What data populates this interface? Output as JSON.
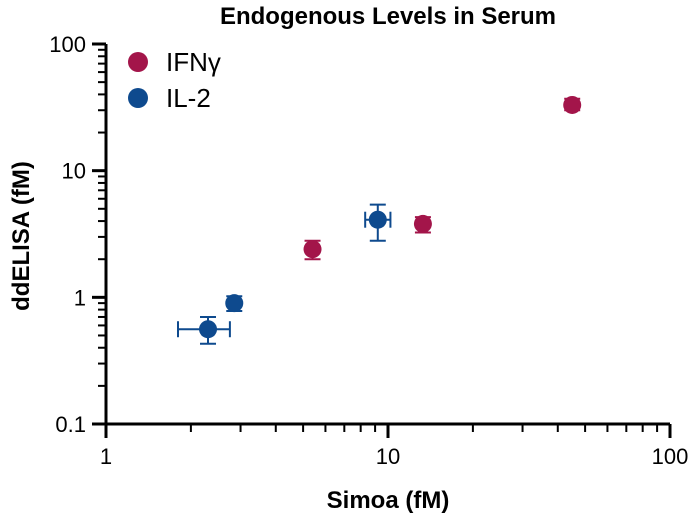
{
  "chart_data": {
    "type": "scatter",
    "title": "Endogenous Levels in Serum",
    "xlabel": "Simoa (fM)",
    "ylabel": "ddELISA (fM)",
    "xscale": "log",
    "yscale": "log",
    "xlim": [
      1,
      100
    ],
    "ylim": [
      0.1,
      100
    ],
    "xticks": [
      {
        "value": 1,
        "label": "1"
      },
      {
        "value": 10,
        "label": "10"
      },
      {
        "value": 100,
        "label": "100"
      }
    ],
    "yticks": [
      {
        "value": 0.1,
        "label": "0.1"
      },
      {
        "value": 1,
        "label": "1"
      },
      {
        "value": 10,
        "label": "10"
      },
      {
        "value": 100,
        "label": "100"
      }
    ],
    "grid": false,
    "legend_position": "top-left",
    "series": [
      {
        "name": "IFNγ",
        "color": "#A3154A",
        "points": [
          {
            "x": 5.4,
            "y": 2.4,
            "y_low": 2.0,
            "y_high": 2.8
          },
          {
            "x": 13.3,
            "y": 3.8,
            "y_low": 3.25,
            "y_high": 4.3
          },
          {
            "x": 45,
            "y": 33,
            "y_low": 30,
            "y_high": 37
          }
        ]
      },
      {
        "name": "IL-2",
        "color": "#0E4A8E",
        "points": [
          {
            "x": 2.3,
            "y": 0.56,
            "x_low": 1.8,
            "x_high": 2.75,
            "y_low": 0.43,
            "y_high": 0.7
          },
          {
            "x": 2.85,
            "y": 0.9,
            "y_low": 0.78,
            "y_high": 1.02
          },
          {
            "x": 9.2,
            "y": 4.1,
            "x_low": 8.3,
            "x_high": 10.2,
            "y_low": 2.8,
            "y_high": 5.4
          }
        ]
      }
    ]
  }
}
